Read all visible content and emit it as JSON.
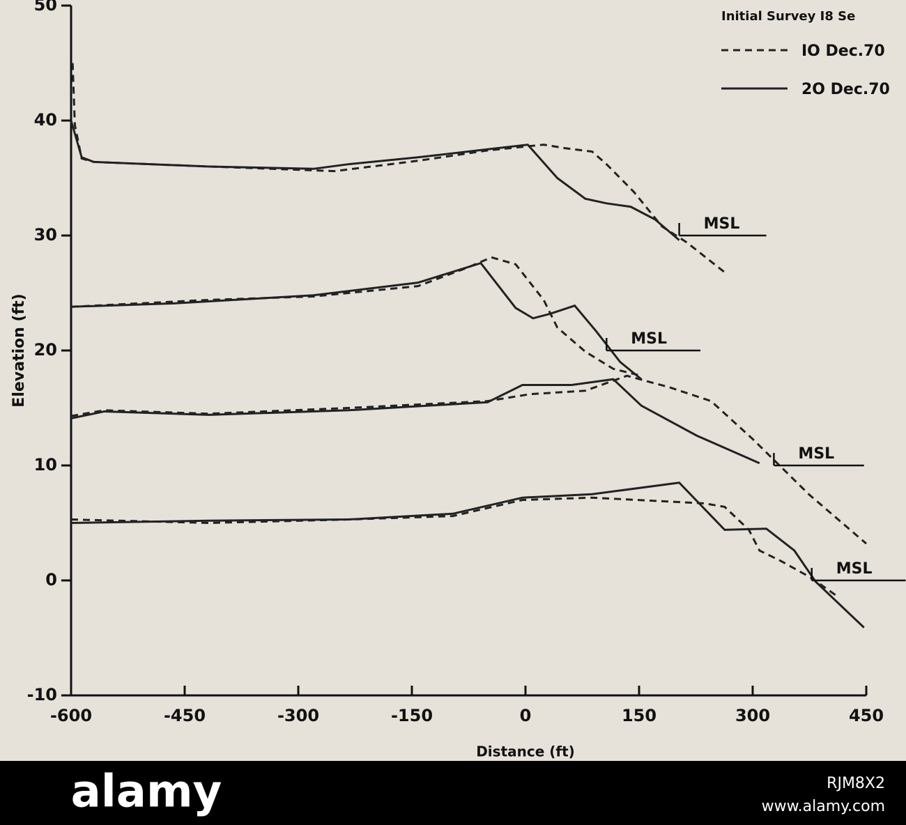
{
  "chart_data": {
    "type": "line",
    "xlabel": "Distance (ft)",
    "ylabel": "Elevation (ft)",
    "xlim": [
      -600,
      450
    ],
    "ylim": [
      -10,
      50
    ],
    "xticks": [
      -600,
      -450,
      -300,
      -150,
      0,
      150,
      300,
      450
    ],
    "yticks": [
      -10,
      0,
      10,
      20,
      30,
      40,
      50
    ],
    "legend_heading": "Initial Survey I8 Se",
    "legend_corner": "top-right",
    "series": [
      {
        "name": "IO Dec.70",
        "color": "#222222",
        "dash": true,
        "profiles": [
          {
            "x": [
              -598,
              -595,
              -586,
              -570,
              -418,
              -252,
              -142,
              -50,
              24,
              52,
              88,
              107,
              143,
              180,
              213,
              263
            ],
            "values": [
              45,
              39.6,
              36.7,
              36.4,
              36,
              35.6,
              36.5,
              37.4,
              37.9,
              37.6,
              37.3,
              36.2,
              33.8,
              30.8,
              29.4,
              26.8
            ]
          },
          {
            "x": [
              -600,
              -418,
              -280,
              -142,
              -77,
              -45,
              -13,
              24,
              42,
              79,
              116,
              153
            ],
            "values": [
              23.8,
              24.4,
              24.7,
              25.6,
              27.2,
              28.1,
              27.5,
              24.4,
              22,
              19.9,
              18.4,
              17.8
            ]
          },
          {
            "x": [
              -600,
              -556,
              -418,
              -234,
              -50,
              6,
              79,
              134,
              190,
              245,
              300,
              374,
              450
            ],
            "values": [
              14.3,
              14.8,
              14.5,
              15,
              15.6,
              16.2,
              16.5,
              17.8,
              16.8,
              15.6,
              12.3,
              7.5,
              3.2
            ]
          },
          {
            "x": [
              -600,
              -418,
              -234,
              -96,
              -4,
              88,
              236,
              263,
              295,
              309,
              337,
              378,
              410
            ],
            "values": [
              5.3,
              5,
              5.3,
              5.6,
              7,
              7.2,
              6.7,
              6.4,
              4.4,
              2.6,
              1.7,
              0.2,
              -1.3
            ]
          }
        ]
      },
      {
        "name": "2O Dec.70",
        "color": "#222222",
        "dash": false,
        "profiles": [
          {
            "x": [
              -600,
              -586,
              -570,
              -418,
              -280,
              -234,
              -142,
              -50,
              3,
              42,
              79,
              107,
              139,
              171,
              203
            ],
            "values": [
              40,
              36.8,
              36.4,
              36,
              35.8,
              36.2,
              36.8,
              37.5,
              37.9,
              35,
              33.2,
              32.8,
              32.5,
              31.4,
              29.6
            ]
          },
          {
            "x": [
              -600,
              -464,
              -280,
              -142,
              -59,
              -13,
              10,
              33,
              65,
              93,
              125,
              153
            ],
            "values": [
              23.8,
              24.1,
              24.8,
              25.9,
              27.6,
              23.7,
              22.8,
              23.2,
              23.9,
              21.7,
              19,
              17.5
            ]
          },
          {
            "x": [
              -600,
              -556,
              -418,
              -234,
              -50,
              -4,
              61,
              116,
              153,
              226,
              309
            ],
            "values": [
              14.1,
              14.7,
              14.4,
              14.8,
              15.5,
              17,
              17,
              17.5,
              15.2,
              12.6,
              10.2
            ]
          },
          {
            "x": [
              -600,
              -418,
              -234,
              -96,
              -4,
              88,
              203,
              263,
              318,
              355,
              383,
              447
            ],
            "values": [
              5,
              5.2,
              5.3,
              5.8,
              7.2,
              7.5,
              8.5,
              4.4,
              4.5,
              2.6,
              -0.1,
              -4.1
            ]
          }
        ]
      }
    ],
    "msl_lines": [
      {
        "label": "MSL",
        "x": [
          203,
          318
        ],
        "y": 30
      },
      {
        "label": "MSL",
        "x": [
          107,
          231
        ],
        "y": 20
      },
      {
        "label": "MSL",
        "x": [
          328,
          447
        ],
        "y": 10
      },
      {
        "label": "MSL",
        "x": [
          378,
          502
        ],
        "y": 0
      }
    ]
  },
  "footer": {
    "logo": "alamy",
    "image_id": "RJM8X2",
    "url": "www.alamy.com"
  }
}
